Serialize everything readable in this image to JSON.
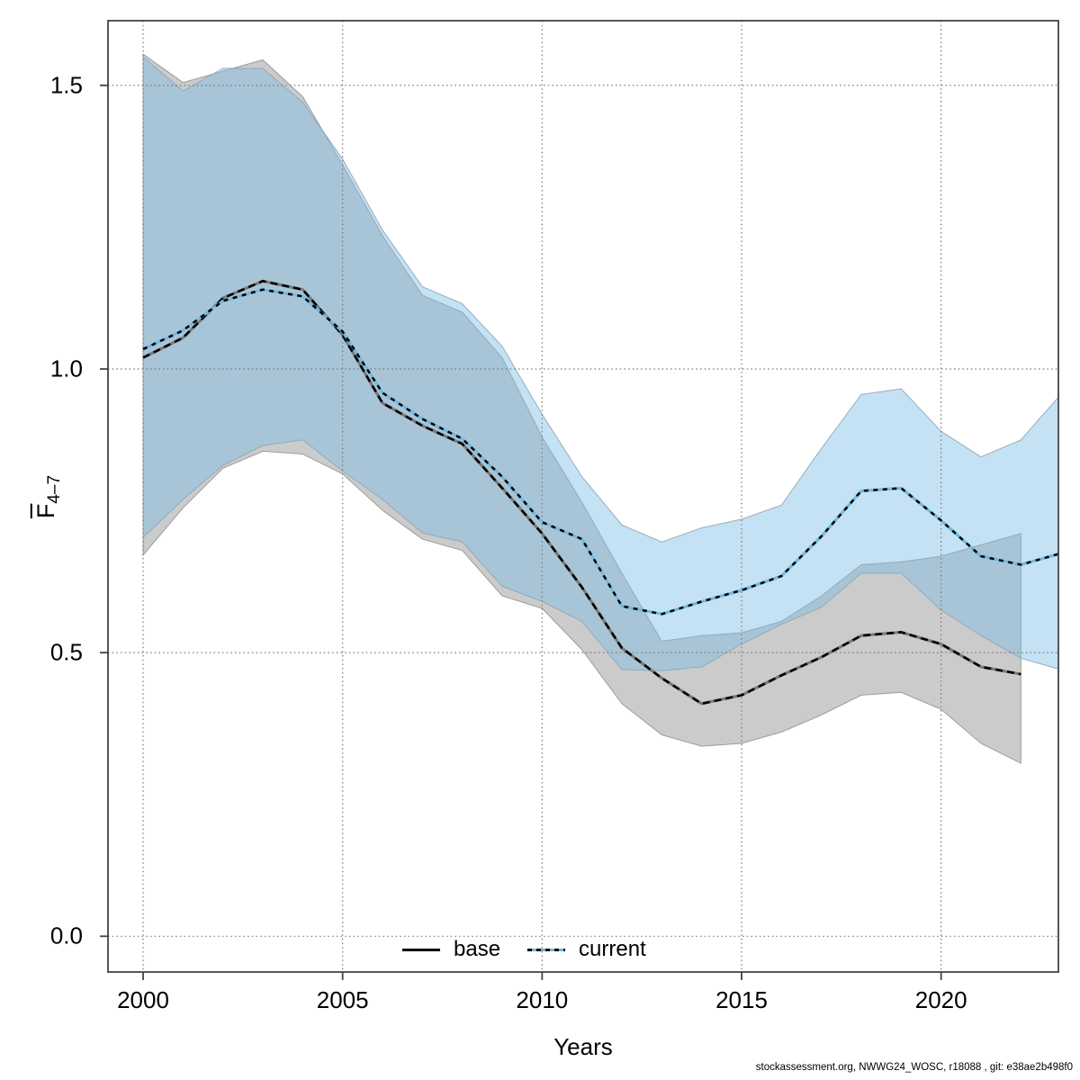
{
  "chart_data": {
    "type": "line",
    "title": "",
    "xlabel": "Years",
    "ylabel_letter": "F",
    "ylabel_subscript": "4–7",
    "x_ticks": [
      2000,
      2005,
      2010,
      2015,
      2020
    ],
    "x_tick_labels": [
      "2000",
      "2005",
      "2010",
      "2015",
      "2020"
    ],
    "y_tick_values": [
      0.0,
      0.5,
      1.0,
      1.5
    ],
    "y_tick_labels": [
      "0.0",
      "0.5",
      "1.0",
      "1.5"
    ],
    "xlim": [
      1999.12,
      2022.94
    ],
    "ylim": [
      -0.063,
      1.614
    ],
    "grid": true,
    "legend_position": "bottom-center",
    "colors": {
      "base_line": "#000000",
      "base_underline": "#7a7a7a",
      "base_band": "#A0A0A0",
      "current_line": "#000000",
      "current_underline": "#74B9E0",
      "current_band": "#7DBEE6",
      "grid": "#777777",
      "frame": "#444444"
    },
    "series": [
      {
        "name": "base",
        "line_style": "solid",
        "years": [
          2000,
          2001,
          2002,
          2003,
          2004,
          2005,
          2006,
          2007,
          2008,
          2009,
          2010,
          2011,
          2012,
          2013,
          2014,
          2015,
          2016,
          2017,
          2018,
          2019,
          2020,
          2021,
          2022
        ],
        "values": [
          1.02,
          1.055,
          1.125,
          1.155,
          1.14,
          1.06,
          0.94,
          0.9,
          0.868,
          0.79,
          0.71,
          0.615,
          0.508,
          0.455,
          0.41,
          0.425,
          0.46,
          0.492,
          0.53,
          0.536,
          0.515,
          0.475,
          0.462
        ],
        "lower": [
          0.672,
          0.755,
          0.825,
          0.855,
          0.85,
          0.815,
          0.751,
          0.7,
          0.68,
          0.6,
          0.578,
          0.505,
          0.41,
          0.355,
          0.335,
          0.34,
          0.36,
          0.39,
          0.425,
          0.43,
          0.4,
          0.34,
          0.305
        ],
        "upper": [
          1.555,
          1.505,
          1.525,
          1.545,
          1.48,
          1.36,
          1.235,
          1.13,
          1.1,
          1.02,
          0.88,
          0.765,
          0.64,
          0.52,
          0.53,
          0.535,
          0.555,
          0.6,
          0.655,
          0.66,
          0.67,
          0.69,
          0.71
        ]
      },
      {
        "name": "current",
        "line_style": "dotted",
        "years": [
          2000,
          2001,
          2002,
          2003,
          2004,
          2005,
          2006,
          2007,
          2008,
          2009,
          2010,
          2011,
          2012,
          2013,
          2014,
          2015,
          2016,
          2017,
          2018,
          2019,
          2020,
          2021,
          2022,
          2023
        ],
        "values": [
          1.035,
          1.068,
          1.12,
          1.14,
          1.128,
          1.066,
          0.958,
          0.912,
          0.877,
          0.81,
          0.73,
          0.7,
          0.582,
          0.568,
          0.59,
          0.61,
          0.635,
          0.705,
          0.785,
          0.79,
          0.733,
          0.67,
          0.655,
          0.675
        ],
        "lower": [
          0.703,
          0.77,
          0.83,
          0.865,
          0.875,
          0.82,
          0.77,
          0.711,
          0.695,
          0.617,
          0.59,
          0.555,
          0.47,
          0.468,
          0.475,
          0.515,
          0.55,
          0.58,
          0.64,
          0.64,
          0.575,
          0.53,
          0.49,
          0.47
        ],
        "upper": [
          1.55,
          1.49,
          1.53,
          1.53,
          1.47,
          1.37,
          1.245,
          1.145,
          1.115,
          1.04,
          0.92,
          0.81,
          0.725,
          0.695,
          0.72,
          0.735,
          0.76,
          0.86,
          0.955,
          0.965,
          0.89,
          0.845,
          0.875,
          0.955
        ]
      }
    ]
  },
  "legend": {
    "items": [
      {
        "label": "base"
      },
      {
        "label": "current"
      }
    ]
  },
  "footer": {
    "text": "stockassessment.org, NWWG24_WOSC, r18088 , git: e38ae2b498f0"
  }
}
